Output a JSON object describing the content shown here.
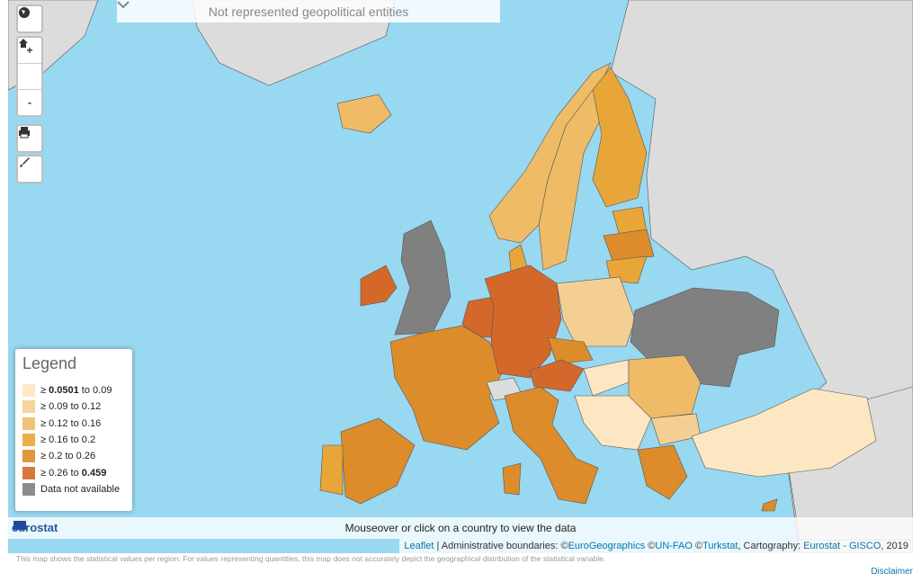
{
  "dropdown": "Not represented geopolitical entities",
  "zoom_in": "+",
  "zoom_out": "-",
  "legend": {
    "title": "Legend",
    "items": [
      {
        "color": "#fde6c2",
        "label_parts": [
          {
            "text": "≥ "
          },
          {
            "text": "0.0501",
            "bold": true
          },
          {
            "text": " to 0.09"
          }
        ]
      },
      {
        "color": "#f4cf94",
        "label_parts": [
          {
            "text": "≥ 0.09 to 0.12"
          }
        ]
      },
      {
        "color": "#efbb66",
        "label_parts": [
          {
            "text": "≥ 0.12 to 0.16"
          }
        ]
      },
      {
        "color": "#e8a639",
        "label_parts": [
          {
            "text": "≥ 0.16 to 0.2"
          }
        ]
      },
      {
        "color": "#dc8c2b",
        "label_parts": [
          {
            "text": "≥ 0.2 to 0.26"
          }
        ]
      },
      {
        "color": "#d4682a",
        "label_parts": [
          {
            "text": "≥ 0.26 to "
          },
          {
            "text": "0.459",
            "bold": true
          }
        ]
      },
      {
        "color": "#808080",
        "label_parts": [
          {
            "text": "Data not available"
          }
        ]
      }
    ]
  },
  "logo": "eurostat",
  "status": "Mouseover or click on a country to view the data",
  "attribution": [
    {
      "text": "Leaflet",
      "link": true
    },
    {
      "text": " | Administrative boundaries: ©"
    },
    {
      "text": "EuroGeographics",
      "link": true
    },
    {
      "text": " ©"
    },
    {
      "text": "UN-FAO",
      "link": true
    },
    {
      "text": " ©"
    },
    {
      "text": "Turkstat",
      "link": true
    },
    {
      "text": ", Cartography: "
    },
    {
      "text": "Eurostat - GISCO",
      "link": true
    },
    {
      "text": ", 2019"
    }
  ],
  "footnote": "This map shows the statistical values per region: For values representing quantities, this map does not accurately depict the geographical distribution of the statistical variable.",
  "disclaimer": "Disclaimer"
}
